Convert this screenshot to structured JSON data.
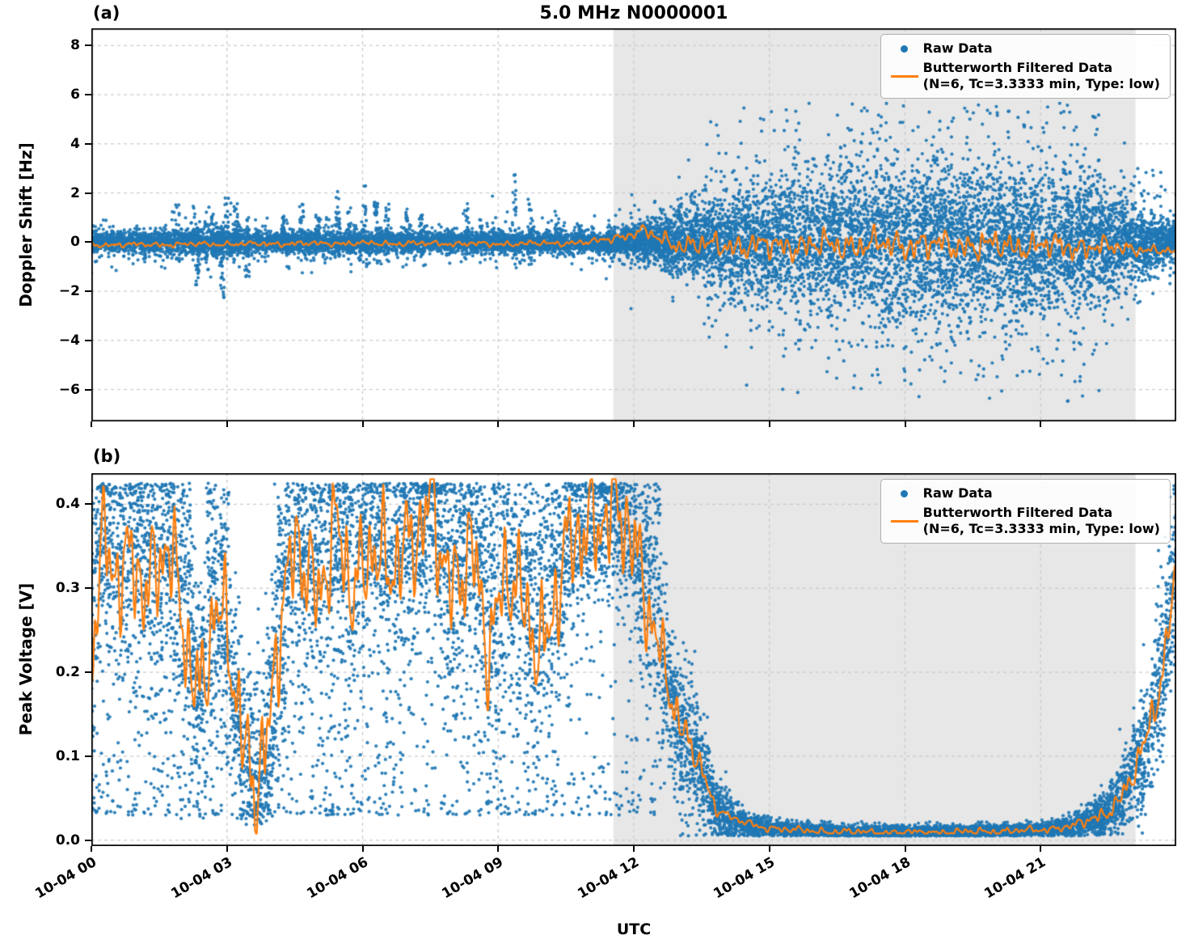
{
  "title": "5.0 MHz N0000001",
  "xlabel": "UTC",
  "panels": [
    {
      "tag": "(a)",
      "ylabel": "Doppler Shift [Hz]"
    },
    {
      "tag": "(b)",
      "ylabel": "Peak Voltage [V]"
    }
  ],
  "legend": {
    "raw_label": "Raw Data",
    "filtered_label_line1": "Butterworth Filtered Data",
    "filtered_label_line2": "(N=6, Tc=3.3333 min, Type: low)"
  },
  "x_axis": {
    "label": "UTC",
    "tick_hours": [
      0,
      3,
      6,
      9,
      12,
      15,
      18,
      21
    ],
    "tick_labels": [
      "10-04 00",
      "10-04 03",
      "10-04 06",
      "10-04 09",
      "10-04 12",
      "10-04 15",
      "10-04 18",
      "10-04 21"
    ]
  },
  "colors": {
    "raw": "#1f77b4",
    "filtered": "#ff7f0e",
    "shade": "#e7e7e7",
    "grid": "#c9c9c9",
    "spine": "#000000",
    "background": "#ffffff"
  },
  "chart_data": [
    {
      "type": "scatter",
      "panel": "(a)",
      "title": "5.0 MHz N0000001",
      "xlabel": "UTC",
      "ylabel": "Doppler Shift [Hz]",
      "xlim_hours": [
        0,
        24
      ],
      "ylim": [
        -7.3,
        8.7
      ],
      "ytick_values": [
        8,
        6,
        4,
        2,
        0,
        -2,
        -4,
        -6
      ],
      "ytick_labels": [
        "8",
        "6",
        "4",
        "2",
        "0",
        "−2",
        "−4",
        "−6"
      ],
      "xtick_hours": [
        0,
        3,
        6,
        9,
        12,
        15,
        18,
        21
      ],
      "xtick_labels": [
        "10-04 00",
        "10-04 03",
        "10-04 06",
        "10-04 09",
        "10-04 12",
        "10-04 15",
        "10-04 18",
        "10-04 21"
      ],
      "grid": true,
      "legend_position": "upper right",
      "shaded_hours": [
        11.55,
        23.1
      ],
      "series": [
        {
          "name": "Raw Data",
          "kind": "scatter",
          "n_points": 14000,
          "night_fraction": 0.58,
          "envelope_t": [
            0,
            1,
            2,
            3,
            4,
            5,
            6,
            7,
            8,
            9,
            10,
            11,
            11.5,
            12,
            12.5,
            13,
            13.5,
            14,
            15,
            16,
            17,
            18,
            19,
            20,
            21,
            22,
            22.5,
            23,
            23.5,
            24
          ],
          "envelope_spread": [
            0.22,
            0.2,
            0.26,
            0.26,
            0.2,
            0.22,
            0.24,
            0.2,
            0.2,
            0.22,
            0.2,
            0.2,
            0.22,
            0.3,
            0.45,
            0.6,
            0.8,
            1.0,
            1.25,
            1.4,
            1.5,
            1.55,
            1.55,
            1.5,
            1.45,
            1.3,
            1.1,
            0.8,
            0.5,
            0.35
          ],
          "clip": [
            -6.5,
            5.65
          ],
          "spikes": [
            [
              1.15,
              -0.9
            ],
            [
              1.9,
              1.6
            ],
            [
              2.25,
              1.5
            ],
            [
              2.35,
              -1.8
            ],
            [
              2.55,
              -2.6
            ],
            [
              2.7,
              1.4
            ],
            [
              2.9,
              -2.4
            ],
            [
              3.0,
              1.8
            ],
            [
              3.2,
              1.6
            ],
            [
              3.45,
              -1.5
            ],
            [
              4.25,
              1.1
            ],
            [
              4.65,
              1.6
            ],
            [
              5.0,
              1.2
            ],
            [
              5.45,
              2.1
            ],
            [
              5.7,
              1.4
            ],
            [
              6.05,
              2.3
            ],
            [
              6.3,
              1.9
            ],
            [
              6.55,
              1.6
            ],
            [
              7.0,
              1.4
            ],
            [
              7.3,
              1.1
            ],
            [
              8.3,
              1.6
            ],
            [
              8.6,
              1.1
            ],
            [
              9.35,
              2.8
            ],
            [
              9.7,
              2.0
            ],
            [
              10.3,
              1.3
            ],
            [
              10.8,
              0.9
            ]
          ]
        },
        {
          "name": "Butterworth Filtered Data (N=6, Tc=3.3333 min, Type: low)",
          "kind": "line",
          "baseline_t": [
            0,
            3,
            6,
            9,
            11,
            11.8,
            12.2,
            12.6,
            13,
            14,
            16,
            18,
            20,
            22,
            23,
            23.5,
            24
          ],
          "baseline_v": [
            -0.12,
            -0.08,
            -0.05,
            -0.08,
            -0.02,
            0.25,
            0.45,
            0.1,
            -0.1,
            -0.15,
            -0.15,
            -0.1,
            -0.15,
            -0.2,
            -0.25,
            -0.35,
            -0.4
          ],
          "wiggle_t": [
            0,
            11,
            12,
            13,
            14,
            16,
            18,
            20,
            21.5,
            22.5,
            23.2,
            24
          ],
          "wiggle_amp": [
            0.07,
            0.08,
            0.15,
            0.28,
            0.35,
            0.4,
            0.42,
            0.4,
            0.36,
            0.28,
            0.16,
            0.1
          ]
        }
      ]
    },
    {
      "type": "scatter",
      "panel": "(b)",
      "xlabel": "UTC",
      "ylabel": "Peak Voltage [V]",
      "xlim_hours": [
        0,
        24
      ],
      "ylim": [
        -0.007,
        0.437
      ],
      "ytick_values": [
        0.4,
        0.3,
        0.2,
        0.1,
        0.0
      ],
      "ytick_labels": [
        "0.4",
        "0.3",
        "0.2",
        "0.1",
        "0.0"
      ],
      "xtick_hours": [
        0,
        3,
        6,
        9,
        12,
        15,
        18,
        21
      ],
      "xtick_labels": [
        "10-04 00",
        "10-04 03",
        "10-04 06",
        "10-04 09",
        "10-04 12",
        "10-04 15",
        "10-04 18",
        "10-04 21"
      ],
      "grid": true,
      "legend_position": "upper right",
      "shaded_hours": [
        11.55,
        23.1
      ],
      "series": [
        {
          "name": "Raw Data",
          "kind": "scatter",
          "n_points": 12000,
          "center_t": [
            0,
            0.2,
            0.5,
            0.9,
            1.3,
            1.7,
            2.1,
            2.4,
            2.7,
            3.0,
            3.3,
            3.6,
            3.9,
            4.2,
            4.6,
            5.0,
            5.4,
            5.8,
            6.2,
            6.6,
            7.0,
            7.5,
            8.0,
            8.4,
            8.8,
            9.2,
            9.6,
            10.0,
            10.5,
            11.0,
            11.4,
            11.8,
            12.2,
            12.6,
            13.0,
            13.4,
            13.8,
            14.2,
            14.8,
            15.5,
            16.5,
            18.0,
            19.5,
            21.0,
            21.8,
            22.4,
            22.9,
            23.3,
            23.7,
            24
          ],
          "center_v": [
            0.22,
            0.35,
            0.3,
            0.34,
            0.31,
            0.34,
            0.24,
            0.18,
            0.27,
            0.24,
            0.13,
            0.08,
            0.12,
            0.26,
            0.36,
            0.3,
            0.36,
            0.29,
            0.37,
            0.31,
            0.34,
            0.42,
            0.27,
            0.36,
            0.24,
            0.31,
            0.27,
            0.24,
            0.33,
            0.38,
            0.4,
            0.37,
            0.31,
            0.23,
            0.13,
            0.1,
            0.04,
            0.025,
            0.016,
            0.012,
            0.01,
            0.009,
            0.01,
            0.012,
            0.018,
            0.03,
            0.06,
            0.11,
            0.2,
            0.33
          ],
          "spread_t": [
            0,
            2,
            3.3,
            4.2,
            8,
            11.5,
            12.4,
            13.2,
            13.8,
            14.5,
            15.5,
            21,
            21.8,
            22.5,
            23,
            23.5,
            24
          ],
          "spread_v": [
            0.075,
            0.075,
            0.05,
            0.075,
            0.075,
            0.055,
            0.055,
            0.045,
            0.02,
            0.007,
            0.004,
            0.004,
            0.006,
            0.014,
            0.028,
            0.045,
            0.055
          ],
          "clip": [
            0.005,
            0.425
          ]
        },
        {
          "name": "Butterworth Filtered Data (N=6, Tc=3.3333 min, Type: low)",
          "kind": "line",
          "follows_center_of_raw": true,
          "wiggle_t": [
            0,
            12,
            13,
            14,
            21.5,
            22.5,
            23.3,
            24
          ],
          "wiggle_amp": [
            0.05,
            0.05,
            0.02,
            0.003,
            0.003,
            0.007,
            0.015,
            0.02
          ]
        }
      ]
    }
  ]
}
